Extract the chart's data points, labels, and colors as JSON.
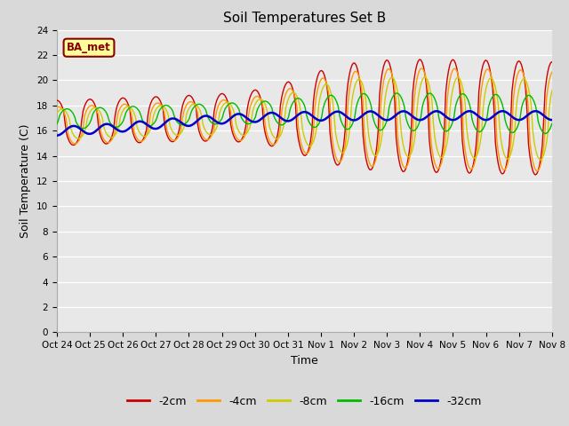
{
  "title": "Soil Temperatures Set B",
  "xlabel": "Time",
  "ylabel": "Soil Temperature (C)",
  "ylim": [
    0,
    24
  ],
  "yticks": [
    0,
    2,
    4,
    6,
    8,
    10,
    12,
    14,
    16,
    18,
    20,
    22,
    24
  ],
  "xtick_labels": [
    "Oct 24",
    "Oct 25",
    "Oct 26",
    "Oct 27",
    "Oct 28",
    "Oct 29",
    "Oct 30",
    "Oct 31",
    "Nov 1",
    "Nov 2",
    "Nov 3",
    "Nov 4",
    "Nov 5",
    "Nov 6",
    "Nov 7",
    "Nov 8"
  ],
  "legend_labels": [
    "-2cm",
    "-4cm",
    "-8cm",
    "-16cm",
    "-32cm"
  ],
  "colors": [
    "#cc0000",
    "#ff9900",
    "#cccc00",
    "#00bb00",
    "#0000cc"
  ],
  "fig_bg": "#d9d9d9",
  "plot_bg": "#e8e8e8",
  "annotation_text": "BA_met",
  "annotation_bg": "#ffff99",
  "annotation_border": "#880000"
}
